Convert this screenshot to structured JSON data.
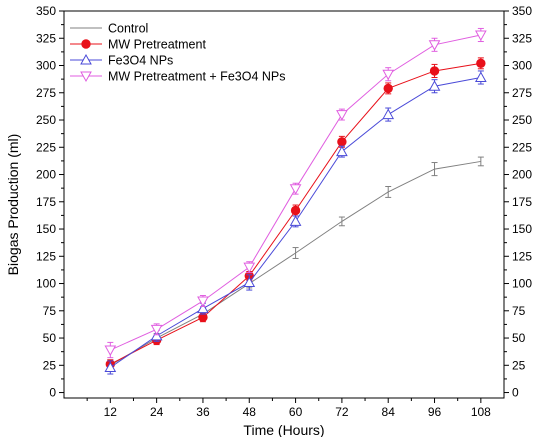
{
  "chart_data": {
    "type": "line",
    "xlabel": "Time (Hours)",
    "ylabel": "Biogas Production (ml)",
    "x": [
      12,
      24,
      36,
      48,
      60,
      72,
      84,
      96,
      108
    ],
    "xlim": [
      0,
      114
    ],
    "ylim": [
      -5,
      350
    ],
    "yticks": [
      0,
      25,
      50,
      75,
      100,
      125,
      150,
      175,
      200,
      225,
      250,
      275,
      300,
      325,
      350
    ],
    "right_axis_ticks": true,
    "grid": false,
    "legend_position": "top-left",
    "series": [
      {
        "name": "Control",
        "color": "#808080",
        "marker": "none",
        "values": [
          25,
          50,
          72,
          100,
          128,
          157,
          184,
          205,
          212
        ],
        "errors": [
          5,
          4,
          4,
          4,
          5,
          4,
          5,
          6,
          4
        ]
      },
      {
        "name": "MW Pretreatment",
        "color": "#e8101a",
        "marker": "circle",
        "values": [
          26,
          48,
          69,
          107,
          167,
          230,
          279,
          295,
          302
        ],
        "errors": [
          4,
          4,
          4,
          4,
          5,
          5,
          5,
          6,
          5
        ]
      },
      {
        "name": "Fe3O4 NPs",
        "color": "#4a4ad8",
        "marker": "triangle-up",
        "values": [
          23,
          52,
          77,
          101,
          157,
          221,
          255,
          281,
          289
        ],
        "errors": [
          6,
          5,
          5,
          7,
          5,
          5,
          6,
          6,
          6
        ]
      },
      {
        "name": "MW Pretreatment + Fe3O4 NPs",
        "color": "#e05ee0",
        "marker": "triangle-down",
        "values": [
          39,
          58,
          84,
          115,
          187,
          255,
          292,
          319,
          328
        ],
        "errors": [
          7,
          5,
          5,
          5,
          5,
          5,
          6,
          6,
          6
        ]
      }
    ]
  }
}
